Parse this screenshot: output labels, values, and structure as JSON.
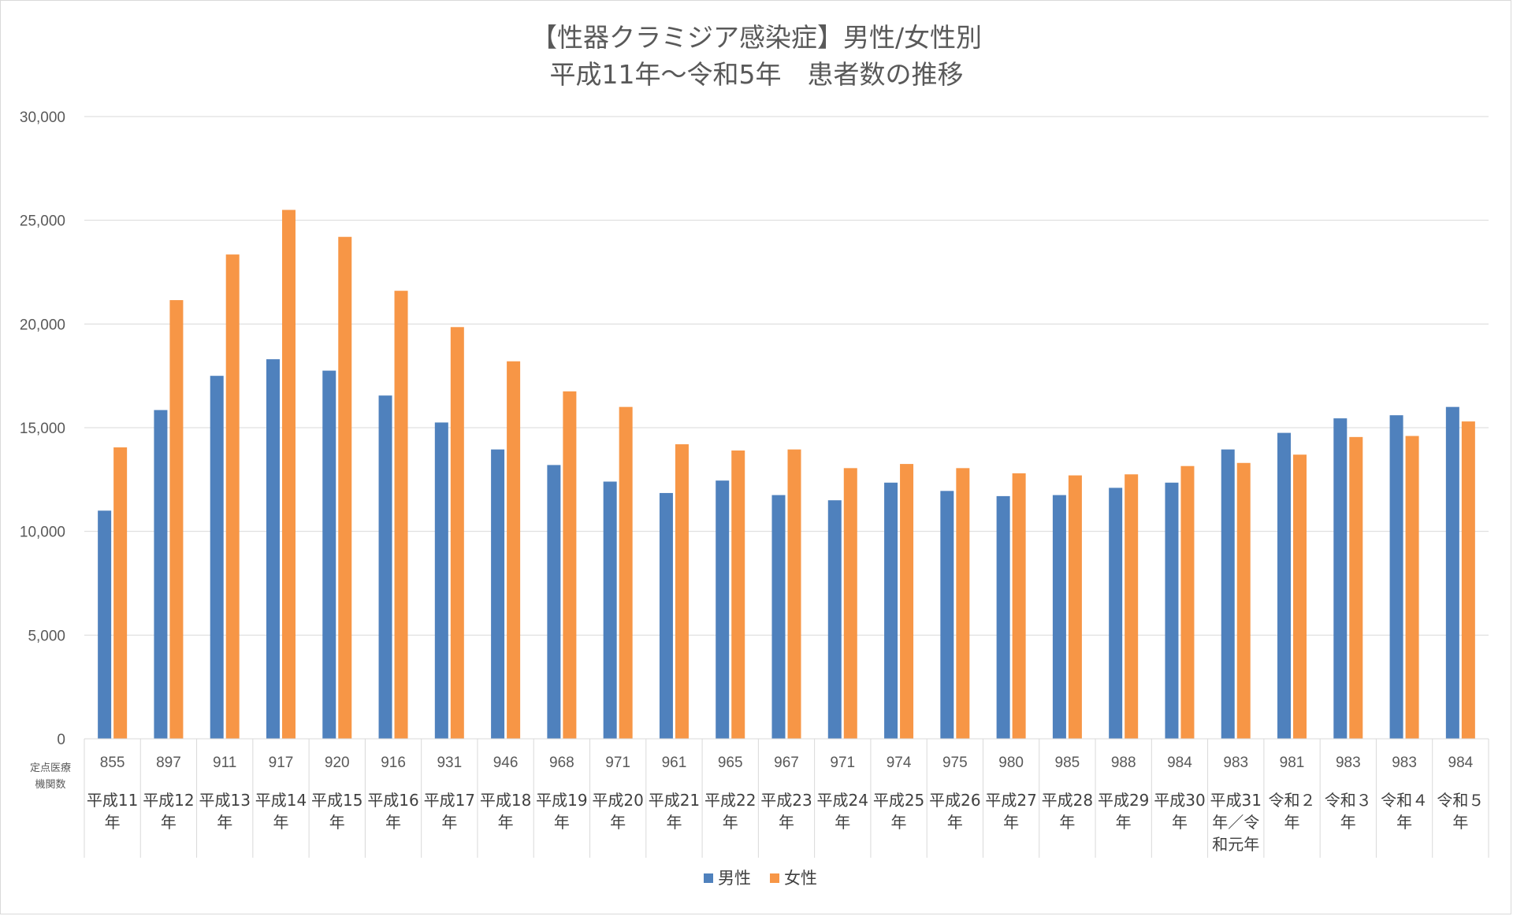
{
  "chart_data": {
    "type": "bar",
    "title_lines": [
      "【性器クラミジア感染症】男性/女性別",
      "平成11年～令和5年　患者数の推移"
    ],
    "ylim": [
      0,
      30000
    ],
    "yticks": [
      "0",
      "5,000",
      "10,000",
      "15,000",
      "20,000",
      "25,000",
      "30,000"
    ],
    "row_label_lines": [
      "定点医療",
      "機関数"
    ],
    "categories": [
      [
        "平成11",
        "年"
      ],
      [
        "平成12",
        "年"
      ],
      [
        "平成13",
        "年"
      ],
      [
        "平成14",
        "年"
      ],
      [
        "平成15",
        "年"
      ],
      [
        "平成16",
        "年"
      ],
      [
        "平成17",
        "年"
      ],
      [
        "平成18",
        "年"
      ],
      [
        "平成19",
        "年"
      ],
      [
        "平成20",
        "年"
      ],
      [
        "平成21",
        "年"
      ],
      [
        "平成22",
        "年"
      ],
      [
        "平成23",
        "年"
      ],
      [
        "平成24",
        "年"
      ],
      [
        "平成25",
        "年"
      ],
      [
        "平成26",
        "年"
      ],
      [
        "平成27",
        "年"
      ],
      [
        "平成28",
        "年"
      ],
      [
        "平成29",
        "年"
      ],
      [
        "平成30",
        "年"
      ],
      [
        "平成31",
        "年／令",
        "和元年"
      ],
      [
        "令和２",
        "年"
      ],
      [
        "令和３",
        "年"
      ],
      [
        "令和４",
        "年"
      ],
      [
        "令和５",
        "年"
      ]
    ],
    "facility_counts": [
      "855",
      "897",
      "911",
      "917",
      "920",
      "916",
      "931",
      "946",
      "968",
      "971",
      "961",
      "965",
      "967",
      "971",
      "974",
      "975",
      "980",
      "985",
      "988",
      "984",
      "983",
      "981",
      "983",
      "983",
      "984"
    ],
    "series": [
      {
        "name": "男性",
        "color": "#4f81bd",
        "values": [
          11000,
          15850,
          17500,
          18300,
          17750,
          16550,
          15250,
          13950,
          13200,
          12400,
          11850,
          12450,
          11750,
          11500,
          12350,
          11950,
          11700,
          11750,
          12100,
          12350,
          13950,
          14750,
          15450,
          15600,
          16000
        ]
      },
      {
        "name": "女性",
        "color": "#f79646",
        "values": [
          14050,
          21150,
          23350,
          25500,
          24200,
          21600,
          19850,
          18200,
          16750,
          16000,
          14200,
          13900,
          13950,
          13050,
          13250,
          13050,
          12800,
          12700,
          12750,
          13150,
          13300,
          13700,
          14550,
          14600,
          15300
        ]
      }
    ],
    "grid": true,
    "legend": "bottom"
  }
}
